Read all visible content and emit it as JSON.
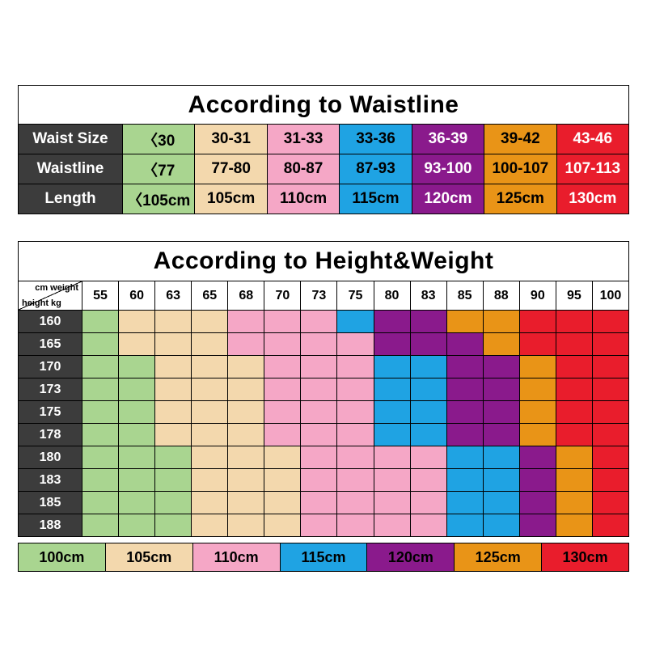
{
  "colors": {
    "green": "#a9d590",
    "tan": "#f3d8ad",
    "pink": "#f5a7c6",
    "blue": "#1fa3e3",
    "purple": "#8a1a8c",
    "orange": "#e99417",
    "red": "#e91d2c",
    "header_dark": "#3c3c3c",
    "grid_line": "#000000",
    "white_text": "#ffffff",
    "black_text": "#000000"
  },
  "chart_data": [
    {
      "type": "table",
      "title": "According to Waistline",
      "row_labels": [
        "Waist Size",
        "Waistline",
        "Length"
      ],
      "rows": [
        [
          "〈30",
          "30-31",
          "31-33",
          "33-36",
          "36-39",
          "39-42",
          "43-46"
        ],
        [
          "〈77",
          "77-80",
          "80-87",
          "87-93",
          "93-100",
          "100-107",
          "107-113"
        ],
        [
          "〈105cm",
          "105cm",
          "110cm",
          "115cm",
          "120cm",
          "125cm",
          "130cm"
        ]
      ],
      "column_colors": [
        "green",
        "tan",
        "pink",
        "blue",
        "purple",
        "orange",
        "red"
      ],
      "white_text_columns": [
        "purple",
        "red"
      ]
    },
    {
      "type": "heatmap",
      "title": "According to Height&Weight",
      "corner": {
        "line1": "cm weight",
        "line2": "height kg"
      },
      "xlabel": "weight (kg)",
      "ylabel": "height (cm)",
      "weights_kg": [
        "55",
        "60",
        "63",
        "65",
        "68",
        "70",
        "73",
        "75",
        "80",
        "83",
        "85",
        "88",
        "90",
        "95",
        "100"
      ],
      "heights_cm": [
        "160",
        "165",
        "170",
        "173",
        "175",
        "178",
        "180",
        "183",
        "185",
        "188"
      ],
      "color_key": {
        "G": "green",
        "T": "tan",
        "P": "pink",
        "B": "blue",
        "U": "purple",
        "O": "orange",
        "R": "red"
      },
      "size_by_color": {
        "green": "100cm",
        "tan": "105cm",
        "pink": "110cm",
        "blue": "115cm",
        "purple": "120cm",
        "orange": "125cm",
        "red": "130cm"
      },
      "cells": [
        "GTTTPPPBUUOORRR",
        "GTTTPPPPUUUORRR",
        "GGTTTPPPBBUUORR",
        "GGTTTPPPBBUUORR",
        "GGTTTPPPBBUUORR",
        "GGTTTPPPBBUUORR",
        "GGGTTTPPPPBBUOR",
        "GGGTTTPPPPBBUOR",
        "GGGTTTPPPPBBUOR",
        "GGGTTTPPPPBBUOR"
      ]
    },
    {
      "type": "legend",
      "items": [
        {
          "label": "100cm",
          "color": "green"
        },
        {
          "label": "105cm",
          "color": "tan"
        },
        {
          "label": "110cm",
          "color": "pink"
        },
        {
          "label": "115cm",
          "color": "blue"
        },
        {
          "label": "120cm",
          "color": "purple"
        },
        {
          "label": "125cm",
          "color": "orange"
        },
        {
          "label": "130cm",
          "color": "red"
        }
      ]
    }
  ]
}
